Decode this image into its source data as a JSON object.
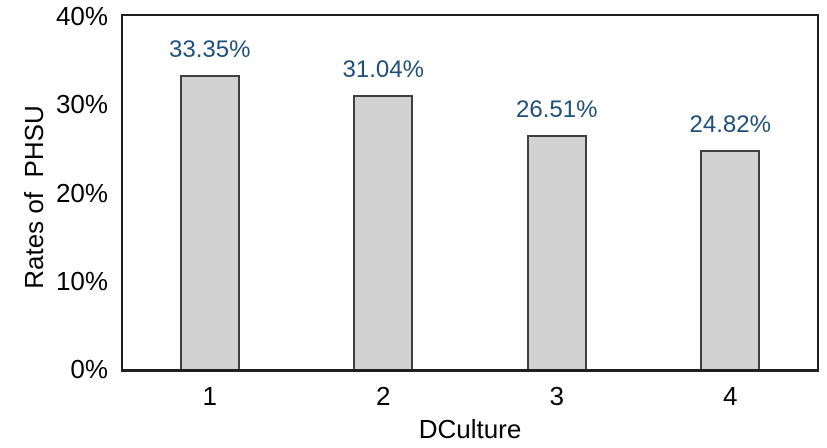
{
  "chart_data": {
    "type": "bar",
    "title": "",
    "xlabel": "DCulture",
    "ylabel": "Rates of  PHSU",
    "categories": [
      "1",
      "2",
      "3",
      "4"
    ],
    "values": [
      33.35,
      31.04,
      26.51,
      24.82
    ],
    "data_labels": [
      "33.35%",
      "31.04%",
      "26.51%",
      "24.82%"
    ],
    "ylim": [
      0,
      40
    ],
    "yticks": [
      0,
      10,
      20,
      30,
      40
    ],
    "ytick_labels": [
      "0%",
      "10%",
      "20%",
      "30%",
      "40%"
    ],
    "grid": false,
    "legend": false,
    "colors": {
      "bar_fill": "#D2D2D2",
      "bar_border": "#404040",
      "data_label": "#1F4E79",
      "axis": "#1F1F1F",
      "tick_text": "#000000",
      "background": "#FFFFFF"
    }
  }
}
